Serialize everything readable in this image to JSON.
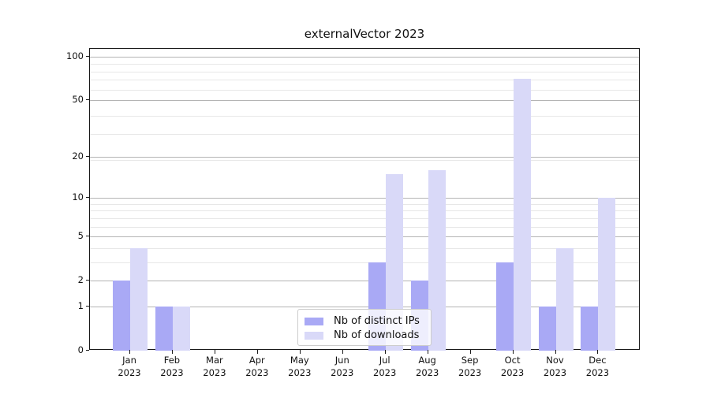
{
  "title": "externalVector 2023",
  "chart_data": {
    "type": "bar",
    "title": "externalVector 2023",
    "categories": [
      "Jan",
      "Feb",
      "Mar",
      "Apr",
      "May",
      "Jun",
      "Jul",
      "Aug",
      "Sep",
      "Oct",
      "Nov",
      "Dec"
    ],
    "category_year": "2023",
    "series": [
      {
        "name": "Nb of distinct IPs",
        "color": "#a9a9f5",
        "values": [
          2,
          1,
          0,
          0,
          0,
          0,
          3,
          2,
          0,
          3,
          1,
          1
        ]
      },
      {
        "name": "Nb of downloads",
        "color": "#d9d9f8",
        "values": [
          4,
          1,
          0,
          0,
          0,
          0,
          15,
          16,
          0,
          70,
          4,
          10
        ]
      }
    ],
    "xlabel": "",
    "ylabel": "",
    "y_axis": {
      "scale": "log1p",
      "major_ticks": [
        0,
        1,
        2,
        5,
        10,
        20,
        50,
        100
      ],
      "minor_ticks": [
        3,
        4,
        6,
        7,
        8,
        9,
        19,
        29,
        39,
        59,
        69,
        79,
        89
      ],
      "ylim": [
        0,
        113
      ]
    },
    "grid": true,
    "legend_position": "lower center"
  },
  "colors": {
    "bar_dark": "#a9a9f5",
    "bar_light": "#d9d9f8",
    "grid_major": "#b4b4b4",
    "grid_minor": "#e7e7e7",
    "spine": "#1a1a1a",
    "text": "#111111",
    "legend_bg": "rgba(255,255,255,0.8)",
    "legend_border": "#cccccc"
  }
}
